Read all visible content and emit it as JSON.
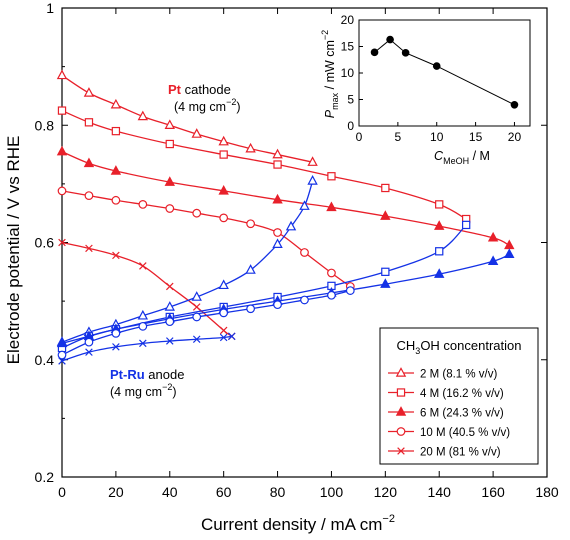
{
  "colors": {
    "cathode": "#e8202a",
    "anode": "#1432e6",
    "axis": "#000000"
  },
  "chart_data": [
    {
      "type": "line",
      "id": "main",
      "xlabel": "Current density / mA cm",
      "xlabel_sup": "−2",
      "ylabel": "Electrode potential / V vs RHE",
      "xlim": [
        0,
        180
      ],
      "ylim": [
        0.2,
        1.0
      ],
      "xticks": [
        0,
        20,
        40,
        60,
        80,
        100,
        120,
        140,
        160,
        180
      ],
      "yticks": [
        0.2,
        0.4,
        0.6,
        0.8,
        1.0
      ],
      "ytick_labels": [
        "0.2",
        "0.4",
        "0.6",
        "0.8",
        "1"
      ],
      "legend": {
        "title_prefix": "CH",
        "title_sub1": "3",
        "title_mid": "OH concentration",
        "placement": "lower-right",
        "entries": [
          {
            "label": "2 M (8.1 % v/v)",
            "marker": "triangle-open"
          },
          {
            "label": "4 M (16.2 % v/v)",
            "marker": "square-open"
          },
          {
            "label": "6 M (24.3 % v/v)",
            "marker": "triangle-filled"
          },
          {
            "label": "10 M (40.5 % v/v)",
            "marker": "circle-open"
          },
          {
            "label": "20 M (81 % v/v)",
            "marker": "cross"
          }
        ]
      },
      "annotations": {
        "cathode_bold": "Pt",
        "cathode_rest": " cathode",
        "cathode_load": "(4 mg cm",
        "cathode_load_sup": "−2",
        "cathode_load_end": ")",
        "anode_bold": "Pt-Ru",
        "anode_rest": " anode",
        "anode_load": "(4 mg cm",
        "anode_load_sup": "−2",
        "anode_load_end": ")"
      },
      "series": [
        {
          "electrode": "cathode",
          "concentration": "2 M",
          "marker": "triangle-open",
          "x": [
            0,
            10,
            20,
            30,
            40,
            50,
            60,
            70,
            80,
            93
          ],
          "y": [
            0.885,
            0.855,
            0.835,
            0.815,
            0.8,
            0.785,
            0.772,
            0.76,
            0.75,
            0.737
          ]
        },
        {
          "electrode": "cathode",
          "concentration": "4 M",
          "marker": "square-open",
          "x": [
            0,
            10,
            20,
            40,
            60,
            80,
            100,
            120,
            140,
            150
          ],
          "y": [
            0.825,
            0.805,
            0.79,
            0.768,
            0.75,
            0.733,
            0.713,
            0.693,
            0.665,
            0.64
          ]
        },
        {
          "electrode": "cathode",
          "concentration": "6 M",
          "marker": "triangle-filled",
          "x": [
            0,
            10,
            20,
            40,
            60,
            80,
            100,
            120,
            140,
            160,
            166
          ],
          "y": [
            0.755,
            0.735,
            0.722,
            0.703,
            0.688,
            0.673,
            0.66,
            0.645,
            0.628,
            0.608,
            0.595
          ]
        },
        {
          "electrode": "cathode",
          "concentration": "10 M",
          "marker": "circle-open",
          "x": [
            0,
            10,
            20,
            30,
            40,
            50,
            60,
            70,
            80,
            90,
            100,
            107
          ],
          "y": [
            0.688,
            0.68,
            0.672,
            0.665,
            0.658,
            0.65,
            0.642,
            0.632,
            0.617,
            0.583,
            0.548,
            0.525
          ]
        },
        {
          "electrode": "cathode",
          "concentration": "20 M",
          "marker": "cross",
          "x": [
            0,
            10,
            20,
            30,
            40,
            50,
            60,
            63
          ],
          "y": [
            0.6,
            0.59,
            0.578,
            0.56,
            0.525,
            0.49,
            0.45,
            0.44
          ]
        },
        {
          "electrode": "anode",
          "concentration": "2 M",
          "marker": "triangle-open",
          "x": [
            0,
            10,
            20,
            30,
            40,
            50,
            60,
            70,
            80,
            85,
            90,
            93
          ],
          "y": [
            0.43,
            0.447,
            0.46,
            0.475,
            0.49,
            0.507,
            0.527,
            0.553,
            0.597,
            0.627,
            0.662,
            0.705
          ]
        },
        {
          "electrode": "anode",
          "concentration": "4 M",
          "marker": "square-open",
          "x": [
            0,
            10,
            20,
            40,
            60,
            80,
            100,
            120,
            140,
            150
          ],
          "y": [
            0.42,
            0.44,
            0.452,
            0.473,
            0.49,
            0.507,
            0.526,
            0.55,
            0.585,
            0.63
          ]
        },
        {
          "electrode": "anode",
          "concentration": "6 M",
          "marker": "triangle-filled",
          "x": [
            0,
            10,
            20,
            40,
            60,
            80,
            100,
            120,
            140,
            160,
            166
          ],
          "y": [
            0.428,
            0.44,
            0.452,
            0.47,
            0.486,
            0.5,
            0.514,
            0.529,
            0.546,
            0.568,
            0.58
          ]
        },
        {
          "electrode": "anode",
          "concentration": "10 M",
          "marker": "circle-open",
          "x": [
            0,
            10,
            20,
            30,
            40,
            50,
            60,
            70,
            80,
            90,
            100,
            107
          ],
          "y": [
            0.408,
            0.43,
            0.445,
            0.457,
            0.465,
            0.473,
            0.48,
            0.487,
            0.494,
            0.502,
            0.51,
            0.518
          ]
        },
        {
          "electrode": "anode",
          "concentration": "20 M",
          "marker": "cross",
          "x": [
            0,
            10,
            20,
            30,
            40,
            50,
            60,
            63
          ],
          "y": [
            0.398,
            0.413,
            0.422,
            0.428,
            0.432,
            0.435,
            0.438,
            0.44
          ]
        }
      ]
    },
    {
      "type": "line",
      "id": "inset",
      "xlabel_prefix": "C",
      "xlabel_sub": "MeOH",
      "xlabel_suffix": " / M",
      "ylabel_prefix": "P",
      "ylabel_sub": "max",
      "ylabel_suffix": " / mW cm",
      "ylabel_sup": "−2",
      "xlim": [
        0,
        22
      ],
      "ylim": [
        0,
        20
      ],
      "xticks": [
        0,
        5,
        10,
        15,
        20
      ],
      "yticks": [
        0,
        5,
        10,
        15,
        20
      ],
      "x": [
        2,
        4,
        6,
        10,
        20
      ],
      "y": [
        13.9,
        16.3,
        13.8,
        11.3,
        4.0
      ]
    }
  ]
}
